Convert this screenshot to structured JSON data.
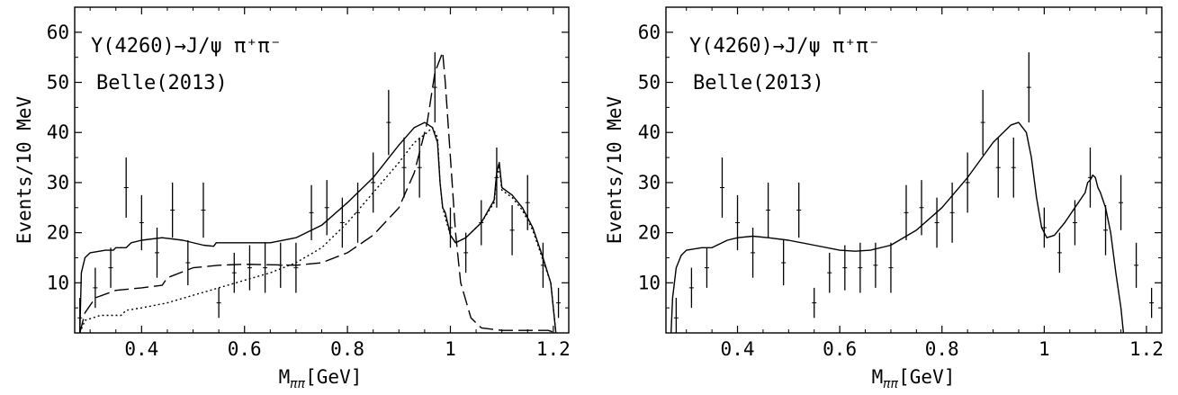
{
  "chart_data": [
    {
      "type": "line",
      "xlabel": "M",
      "xlabel_sub": "ππ",
      "xlabel_unit": "[GeV]",
      "ylabel": "Events/10 MeV",
      "xlim": [
        0.27,
        1.23
      ],
      "ylim": [
        0,
        65
      ],
      "xticks": [
        0.4,
        0.6,
        0.8,
        1.0,
        1.2
      ],
      "xtick_labels": [
        "0.4",
        "0.6",
        "0.8",
        "1",
        "1.2"
      ],
      "yticks": [
        10,
        20,
        30,
        40,
        50,
        60
      ],
      "ytick_labels": [
        "10",
        "20",
        "30",
        "40",
        "50",
        "60"
      ],
      "annotation_line1": "Y(4260)→J/ψ π⁺π⁻",
      "annotation_line2": "Belle(2013)",
      "points": [
        {
          "x": 0.28,
          "y": 3,
          "err": 4
        },
        {
          "x": 0.31,
          "y": 9,
          "err": 4
        },
        {
          "x": 0.34,
          "y": 13,
          "err": 4
        },
        {
          "x": 0.37,
          "y": 29,
          "err": 6
        },
        {
          "x": 0.4,
          "y": 22,
          "err": 5.5
        },
        {
          "x": 0.43,
          "y": 16,
          "err": 5
        },
        {
          "x": 0.46,
          "y": 24.5,
          "err": 5.5
        },
        {
          "x": 0.49,
          "y": 14,
          "err": 4.5
        },
        {
          "x": 0.52,
          "y": 24.5,
          "err": 5.5
        },
        {
          "x": 0.55,
          "y": 6,
          "err": 3
        },
        {
          "x": 0.58,
          "y": 12,
          "err": 4
        },
        {
          "x": 0.61,
          "y": 13,
          "err": 4.5
        },
        {
          "x": 0.64,
          "y": 13,
          "err": 5
        },
        {
          "x": 0.67,
          "y": 13.5,
          "err": 4.5
        },
        {
          "x": 0.7,
          "y": 13,
          "err": 5
        },
        {
          "x": 0.73,
          "y": 24,
          "err": 5.5
        },
        {
          "x": 0.76,
          "y": 25,
          "err": 5.5
        },
        {
          "x": 0.79,
          "y": 22,
          "err": 5
        },
        {
          "x": 0.82,
          "y": 24,
          "err": 6
        },
        {
          "x": 0.85,
          "y": 30,
          "err": 6
        },
        {
          "x": 0.88,
          "y": 42,
          "err": 6.5
        },
        {
          "x": 0.91,
          "y": 33,
          "err": 6
        },
        {
          "x": 0.94,
          "y": 33,
          "err": 6
        },
        {
          "x": 0.97,
          "y": 49,
          "err": 7
        },
        {
          "x": 1.0,
          "y": 21,
          "err": 4
        },
        {
          "x": 1.03,
          "y": 16,
          "err": 4
        },
        {
          "x": 1.06,
          "y": 22,
          "err": 4.5
        },
        {
          "x": 1.09,
          "y": 31,
          "err": 6
        },
        {
          "x": 1.12,
          "y": 20.5,
          "err": 5
        },
        {
          "x": 1.15,
          "y": 26,
          "err": 5.5
        },
        {
          "x": 1.18,
          "y": 13.5,
          "err": 4.5
        },
        {
          "x": 1.21,
          "y": 6,
          "err": 3
        },
        {
          "x": 1.24,
          "y": 2,
          "err": 1.5
        }
      ],
      "series": [
        {
          "style": "solid",
          "points": [
            [
              0.28,
              0
            ],
            [
              0.283,
              12
            ],
            [
              0.29,
              15
            ],
            [
              0.3,
              16
            ],
            [
              0.33,
              16.5
            ],
            [
              0.345,
              16.5
            ],
            [
              0.35,
              17
            ],
            [
              0.37,
              17
            ],
            [
              0.38,
              18
            ],
            [
              0.4,
              18.5
            ],
            [
              0.44,
              19
            ],
            [
              0.48,
              18.5
            ],
            [
              0.52,
              17.5
            ],
            [
              0.54,
              17.3
            ],
            [
              0.545,
              18
            ],
            [
              0.6,
              18
            ],
            [
              0.65,
              18
            ],
            [
              0.7,
              19
            ],
            [
              0.75,
              21.5
            ],
            [
              0.8,
              26
            ],
            [
              0.85,
              31
            ],
            [
              0.9,
              37.5
            ],
            [
              0.93,
              41
            ],
            [
              0.95,
              42
            ],
            [
              0.965,
              41
            ],
            [
              0.975,
              38
            ],
            [
              0.98,
              30
            ],
            [
              0.985,
              25
            ],
            [
              0.99,
              24
            ],
            [
              1.0,
              19.5
            ],
            [
              1.01,
              18
            ],
            [
              1.03,
              19
            ],
            [
              1.06,
              22
            ],
            [
              1.085,
              26.5
            ],
            [
              1.09,
              32
            ],
            [
              1.095,
              34
            ],
            [
              1.1,
              29
            ],
            [
              1.12,
              27.5
            ],
            [
              1.14,
              25
            ],
            [
              1.16,
              21
            ],
            [
              1.18,
              15
            ],
            [
              1.195,
              10
            ],
            [
              1.205,
              0
            ]
          ]
        },
        {
          "style": "dotted",
          "points": [
            [
              0.28,
              0
            ],
            [
              0.29,
              2.5
            ],
            [
              0.32,
              3.5
            ],
            [
              0.36,
              3.5
            ],
            [
              0.37,
              4.5
            ],
            [
              0.4,
              5
            ],
            [
              0.45,
              6
            ],
            [
              0.5,
              7.5
            ],
            [
              0.55,
              9
            ],
            [
              0.6,
              10.5
            ],
            [
              0.65,
              12
            ],
            [
              0.7,
              14
            ],
            [
              0.75,
              17
            ],
            [
              0.8,
              22
            ],
            [
              0.85,
              28
            ],
            [
              0.9,
              34
            ],
            [
              0.93,
              38
            ],
            [
              0.955,
              40
            ],
            [
              0.965,
              41
            ],
            [
              0.975,
              39
            ],
            [
              0.98,
              30
            ],
            [
              0.985,
              25
            ],
            [
              0.99,
              23
            ],
            [
              1.0,
              19.5
            ],
            [
              1.01,
              18
            ],
            [
              1.03,
              19
            ],
            [
              1.06,
              22
            ],
            [
              1.085,
              26
            ],
            [
              1.09,
              31
            ],
            [
              1.095,
              33
            ],
            [
              1.1,
              28.5
            ],
            [
              1.12,
              27
            ],
            [
              1.14,
              24.5
            ],
            [
              1.16,
              20.5
            ],
            [
              1.18,
              14.5
            ],
            [
              1.195,
              10
            ],
            [
              1.205,
              0
            ]
          ]
        },
        {
          "style": "dashed",
          "points": [
            [
              0.28,
              0
            ],
            [
              0.29,
              4
            ],
            [
              0.31,
              7
            ],
            [
              0.35,
              8.5
            ],
            [
              0.4,
              9
            ],
            [
              0.44,
              9.5
            ],
            [
              0.45,
              11
            ],
            [
              0.5,
              13
            ],
            [
              0.55,
              13.5
            ],
            [
              0.6,
              13.7
            ],
            [
              0.7,
              13.5
            ],
            [
              0.75,
              14
            ],
            [
              0.8,
              16
            ],
            [
              0.85,
              19.5
            ],
            [
              0.9,
              25
            ],
            [
              0.93,
              32
            ],
            [
              0.955,
              42
            ],
            [
              0.97,
              52
            ],
            [
              0.985,
              56
            ],
            [
              0.99,
              50
            ],
            [
              1.0,
              35
            ],
            [
              1.01,
              20
            ],
            [
              1.02,
              10
            ],
            [
              1.04,
              3
            ],
            [
              1.06,
              1
            ],
            [
              1.1,
              0.5
            ],
            [
              1.15,
              0.5
            ],
            [
              1.19,
              0.5
            ],
            [
              1.205,
              0
            ]
          ]
        }
      ]
    },
    {
      "type": "line",
      "xlabel": "M",
      "xlabel_sub": "ππ",
      "xlabel_unit": "[GeV]",
      "ylabel": "Events/10 MeV",
      "xlim": [
        0.26,
        1.23
      ],
      "ylim": [
        0,
        65
      ],
      "xticks": [
        0.4,
        0.6,
        0.8,
        1.0,
        1.2
      ],
      "xtick_labels": [
        "0.4",
        "0.6",
        "0.8",
        "1",
        "1.2"
      ],
      "yticks": [
        10,
        20,
        30,
        40,
        50,
        60
      ],
      "ytick_labels": [
        "10",
        "20",
        "30",
        "40",
        "50",
        "60"
      ],
      "annotation_line1": "Y(4260)→J/ψ π⁺π⁻",
      "annotation_line2": "Belle(2013)",
      "points": [
        {
          "x": 0.28,
          "y": 3,
          "err": 4
        },
        {
          "x": 0.31,
          "y": 9,
          "err": 4
        },
        {
          "x": 0.34,
          "y": 13,
          "err": 4
        },
        {
          "x": 0.37,
          "y": 29,
          "err": 6
        },
        {
          "x": 0.4,
          "y": 22,
          "err": 5.5
        },
        {
          "x": 0.43,
          "y": 16,
          "err": 5
        },
        {
          "x": 0.46,
          "y": 24.5,
          "err": 5.5
        },
        {
          "x": 0.49,
          "y": 14,
          "err": 4.5
        },
        {
          "x": 0.52,
          "y": 24.5,
          "err": 5.5
        },
        {
          "x": 0.55,
          "y": 6,
          "err": 3
        },
        {
          "x": 0.58,
          "y": 12,
          "err": 4
        },
        {
          "x": 0.61,
          "y": 13,
          "err": 4.5
        },
        {
          "x": 0.64,
          "y": 13,
          "err": 5
        },
        {
          "x": 0.67,
          "y": 13.5,
          "err": 4.5
        },
        {
          "x": 0.7,
          "y": 13,
          "err": 5
        },
        {
          "x": 0.73,
          "y": 24,
          "err": 5.5
        },
        {
          "x": 0.76,
          "y": 25,
          "err": 5.5
        },
        {
          "x": 0.79,
          "y": 22,
          "err": 5
        },
        {
          "x": 0.82,
          "y": 24,
          "err": 6
        },
        {
          "x": 0.85,
          "y": 30,
          "err": 6
        },
        {
          "x": 0.88,
          "y": 42,
          "err": 6.5
        },
        {
          "x": 0.91,
          "y": 33,
          "err": 6
        },
        {
          "x": 0.94,
          "y": 33,
          "err": 6
        },
        {
          "x": 0.97,
          "y": 49,
          "err": 7
        },
        {
          "x": 1.0,
          "y": 21,
          "err": 4
        },
        {
          "x": 1.03,
          "y": 16,
          "err": 4
        },
        {
          "x": 1.06,
          "y": 22,
          "err": 4.5
        },
        {
          "x": 1.09,
          "y": 31,
          "err": 6
        },
        {
          "x": 1.12,
          "y": 20.5,
          "err": 5
        },
        {
          "x": 1.15,
          "y": 26,
          "err": 5.5
        },
        {
          "x": 1.18,
          "y": 13.5,
          "err": 4.5
        },
        {
          "x": 1.21,
          "y": 6,
          "err": 3
        },
        {
          "x": 1.24,
          "y": 2,
          "err": 1.5
        }
      ],
      "series": [
        {
          "style": "solid",
          "points": [
            [
              0.27,
              0
            ],
            [
              0.273,
              7
            ],
            [
              0.28,
              13
            ],
            [
              0.29,
              15.5
            ],
            [
              0.3,
              16.5
            ],
            [
              0.33,
              17
            ],
            [
              0.35,
              17
            ],
            [
              0.36,
              17.5
            ],
            [
              0.38,
              18.5
            ],
            [
              0.4,
              19
            ],
            [
              0.43,
              19.3
            ],
            [
              0.46,
              19
            ],
            [
              0.5,
              18.5
            ],
            [
              0.55,
              17.5
            ],
            [
              0.6,
              16.5
            ],
            [
              0.63,
              16.3
            ],
            [
              0.66,
              16.5
            ],
            [
              0.7,
              17.5
            ],
            [
              0.75,
              20.5
            ],
            [
              0.8,
              25
            ],
            [
              0.85,
              31
            ],
            [
              0.9,
              38
            ],
            [
              0.935,
              41.5
            ],
            [
              0.95,
              42
            ],
            [
              0.965,
              40
            ],
            [
              0.975,
              35
            ],
            [
              0.985,
              27
            ],
            [
              0.995,
              21
            ],
            [
              1.005,
              19
            ],
            [
              1.02,
              19.5
            ],
            [
              1.04,
              22
            ],
            [
              1.06,
              25
            ],
            [
              1.08,
              28
            ],
            [
              1.085,
              30
            ],
            [
              1.09,
              30.5
            ],
            [
              1.095,
              31.5
            ],
            [
              1.1,
              31
            ],
            [
              1.105,
              29
            ],
            [
              1.11,
              28
            ],
            [
              1.12,
              25
            ],
            [
              1.13,
              20
            ],
            [
              1.14,
              12
            ],
            [
              1.15,
              5
            ],
            [
              1.155,
              0
            ]
          ]
        }
      ]
    }
  ]
}
